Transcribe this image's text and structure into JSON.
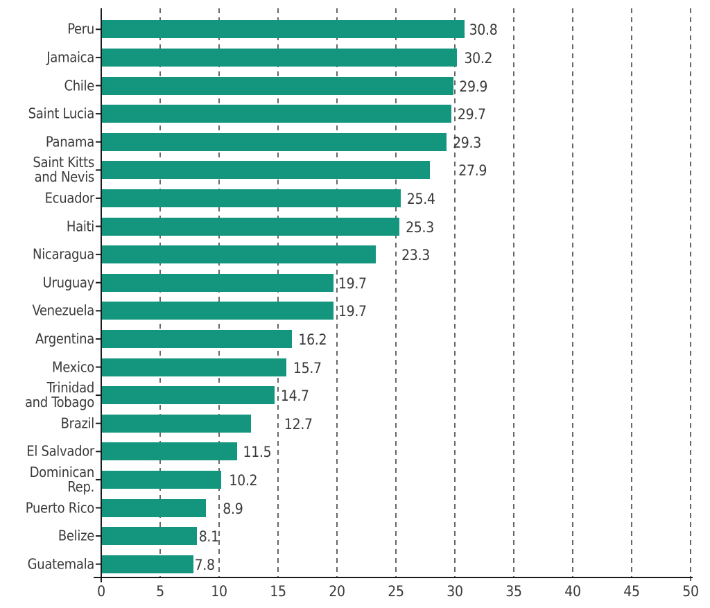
{
  "chart_data": {
    "type": "bar",
    "orientation": "horizontal",
    "title": "",
    "xlabel": "",
    "ylabel": "",
    "categories": [
      "Peru",
      "Jamaica",
      "Chile",
      "Saint Lucia",
      "Panama",
      "Saint Kitts\nand Nevis",
      "Ecuador",
      "Haiti",
      "Nicaragua",
      "Uruguay",
      "Venezuela",
      "Argentina",
      "Mexico",
      "Trinidad\nand Tobago",
      "Brazil",
      "El Salvador",
      "Dominican\nRep.",
      "Puerto Rico",
      "Belize",
      "Guatemala"
    ],
    "values": [
      30.8,
      30.2,
      29.9,
      29.7,
      29.3,
      27.9,
      25.4,
      25.3,
      23.3,
      19.7,
      19.7,
      16.2,
      15.7,
      14.7,
      12.7,
      11.5,
      10.2,
      8.9,
      8.1,
      7.8
    ],
    "value_labels": [
      "30.8",
      "30.2",
      "29.9",
      "29.7",
      "29.3",
      "27.9",
      "25.4",
      "25.3",
      "23.3",
      "19.7",
      "19.7",
      "16.2",
      "15.7",
      "14.7",
      "12.7",
      "11.5",
      "10.2",
      "8.9",
      "8.1",
      "7.8"
    ],
    "xlim": [
      0,
      50
    ],
    "x_ticks": [
      0,
      5,
      10,
      15,
      20,
      25,
      30,
      35,
      40,
      45,
      50
    ],
    "x_tick_labels": [
      "0",
      "5",
      "10",
      "15",
      "20",
      "25",
      "30",
      "35",
      "40",
      "45",
      "50"
    ],
    "grid": "vertical-dashed",
    "legend": "none",
    "layout_hints": {
      "value_label_dx": [
        7,
        10,
        8,
        9,
        9,
        41,
        9,
        9,
        37,
        7,
        7,
        9,
        10,
        9,
        48,
        9,
        11,
        24,
        3,
        2
      ]
    },
    "colors": {
      "bar": "#14967E",
      "text": "#3A3A3A",
      "axis": "#1A1A1A",
      "grid": "#424242"
    }
  }
}
